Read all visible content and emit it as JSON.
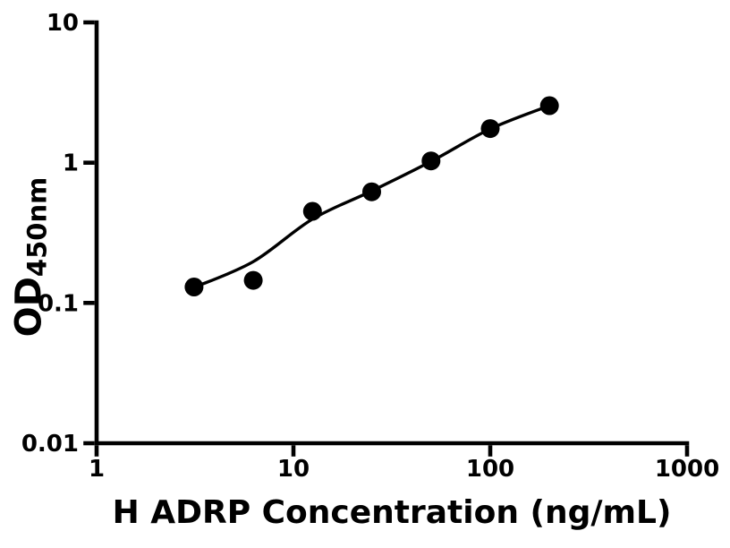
{
  "figure": {
    "background_color": "#ffffff",
    "ink_color": "#000000"
  },
  "chart_data": {
    "type": "scatter",
    "title": "",
    "xlabel": "H ADRP Concentration (ng/mL)",
    "ylabel": "OD",
    "ylabel_subscript": "450nm",
    "x_scale": "log",
    "y_scale": "log",
    "xlim": [
      1,
      1000
    ],
    "ylim": [
      0.01,
      10
    ],
    "x_ticks": [
      1,
      10,
      100,
      1000
    ],
    "x_tick_labels": [
      "1",
      "10",
      "100",
      "1000"
    ],
    "y_ticks": [
      0.01,
      0.1,
      1,
      10
    ],
    "y_tick_labels": [
      "0.01",
      "0.1",
      "1",
      "10"
    ],
    "grid": false,
    "legend": false,
    "series": [
      {
        "name": "standard-curve-fit",
        "kind": "line",
        "color": "#000000",
        "x": [
          3.125,
          6.25,
          12.5,
          25,
          50,
          100,
          200
        ],
        "y": [
          0.129,
          0.197,
          0.396,
          0.628,
          1.02,
          1.74,
          2.55
        ]
      },
      {
        "name": "standard-points",
        "kind": "scatter",
        "marker": "circle",
        "color": "#000000",
        "x": [
          3.125,
          6.25,
          12.5,
          25,
          50,
          100,
          200
        ],
        "y": [
          0.13,
          0.145,
          0.45,
          0.62,
          1.03,
          1.75,
          2.55
        ]
      }
    ]
  }
}
